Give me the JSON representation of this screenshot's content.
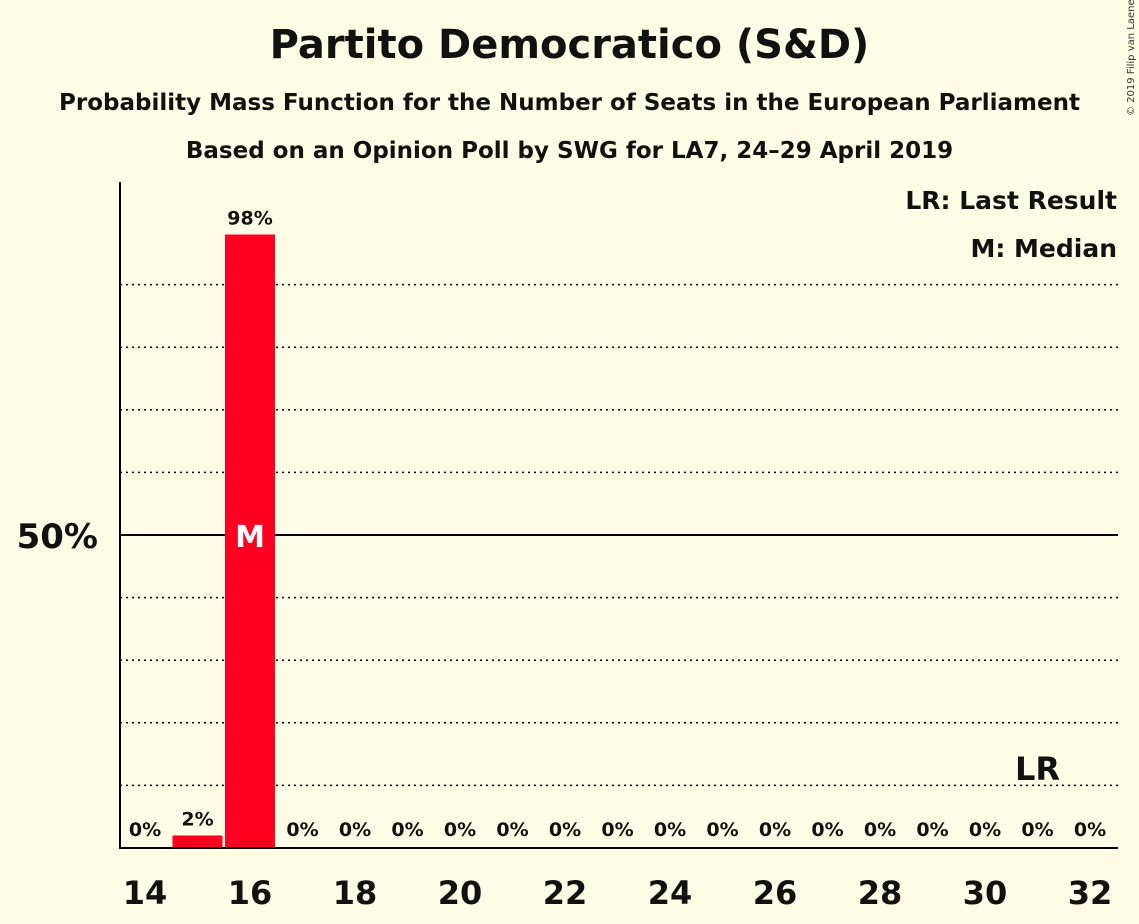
{
  "title": "Partito Democratico (S&D)",
  "subtitle1": "Probability Mass Function for the Number of Seats in the European Parliament",
  "subtitle2": "Based on an Opinion Poll by SWG for LA7, 24–29 April 2019",
  "copyright": "© 2019 Filip van Laenen",
  "legend": {
    "last_result": "LR: Last Result",
    "median": "M: Median"
  },
  "colors": {
    "bar": "#ff0020",
    "background": "#fffde6",
    "axis": "#000000"
  },
  "chart_data": {
    "type": "bar",
    "x": [
      14,
      15,
      16,
      17,
      18,
      19,
      20,
      21,
      22,
      23,
      24,
      25,
      26,
      27,
      28,
      29,
      30,
      31,
      32
    ],
    "values": [
      0,
      2,
      98,
      0,
      0,
      0,
      0,
      0,
      0,
      0,
      0,
      0,
      0,
      0,
      0,
      0,
      0,
      0,
      0
    ],
    "value_labels": [
      "0%",
      "2%",
      "98%",
      "0%",
      "0%",
      "0%",
      "0%",
      "0%",
      "0%",
      "0%",
      "0%",
      "0%",
      "0%",
      "0%",
      "0%",
      "0%",
      "0%",
      "0%",
      "0%"
    ],
    "x_tick_labels": [
      "14",
      "16",
      "18",
      "20",
      "22",
      "24",
      "26",
      "28",
      "30",
      "32"
    ],
    "y_tick_label": "50%",
    "ylim": [
      0,
      100
    ],
    "gridlines": [
      10,
      20,
      30,
      40,
      60,
      70,
      80,
      90
    ],
    "major_gridline": 50,
    "median": 16,
    "median_label": "M",
    "last_result": 31,
    "last_result_label": "LR"
  }
}
